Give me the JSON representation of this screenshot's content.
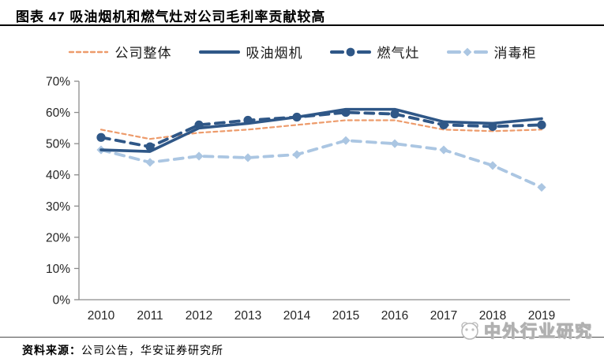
{
  "title": "图表  47 吸油烟机和燃气灶对公司毛利率贡献较高",
  "source": {
    "label": "资料来源：",
    "text": "公司公告，华安证券研究所"
  },
  "watermark": {
    "icon": "panda-logo",
    "text": "中外行业研究"
  },
  "colors": {
    "navy": "#2F5787",
    "orange": "#ED9B6B",
    "light_blue": "#ABC6E2",
    "axis_text": "#262626",
    "axis_line": "#8C8C8C"
  },
  "chart_data": {
    "type": "line",
    "title": "",
    "xlabel": "",
    "ylabel": "",
    "x": [
      "2010",
      "2011",
      "2012",
      "2013",
      "2014",
      "2015",
      "2016",
      "2017",
      "2018",
      "2019"
    ],
    "series": [
      {
        "name": "公司整体",
        "color_key": "orange",
        "style": "dashed",
        "marker": "none",
        "values": [
          54.5,
          51.5,
          53.5,
          54.5,
          56.0,
          57.5,
          57.5,
          54.5,
          54.0,
          54.5
        ]
      },
      {
        "name": "吸油烟机",
        "color_key": "navy",
        "style": "solid",
        "marker": "none",
        "values": [
          48.0,
          47.5,
          55.0,
          56.5,
          58.5,
          61.0,
          61.0,
          57.0,
          56.5,
          58.0
        ]
      },
      {
        "name": "燃气灶",
        "color_key": "navy",
        "style": "dashed",
        "marker": "circle",
        "values": [
          52.0,
          49.0,
          56.0,
          57.5,
          58.5,
          60.0,
          59.5,
          56.0,
          55.5,
          56.0
        ]
      },
      {
        "name": "消毒柜",
        "color_key": "light_blue",
        "style": "dashed",
        "marker": "diamond",
        "values": [
          48.0,
          44.0,
          46.0,
          45.5,
          46.5,
          51.0,
          50.0,
          48.0,
          43.0,
          36.0
        ]
      }
    ],
    "ylim": [
      0,
      70
    ],
    "ytick_step": 10,
    "ytick_format": "percent",
    "grid": false,
    "legend_position": "top"
  }
}
